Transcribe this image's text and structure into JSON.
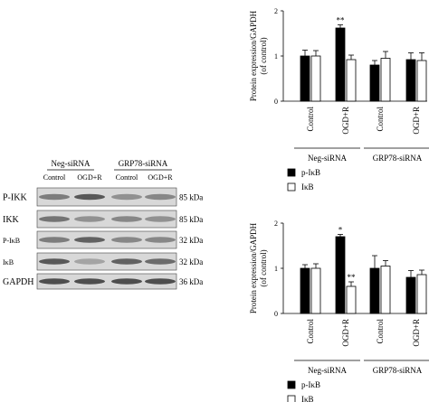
{
  "western_blot": {
    "groups": [
      "Neg-siRNA",
      "GRP78-siRNA"
    ],
    "lanes": [
      "Control",
      "OGD+R",
      "Control",
      "OGD+R"
    ],
    "rows": [
      {
        "label": "P-IKK",
        "kda": "85 kDa"
      },
      {
        "label": "IKK",
        "kda": "85 kDa"
      },
      {
        "label": "P-IκB",
        "kda": "32 kDa"
      },
      {
        "label": "IκB",
        "kda": "32 kDa"
      },
      {
        "label": "GAPDH",
        "kda": "36 kDa"
      }
    ]
  },
  "chart_data": [
    {
      "type": "bar",
      "ylabel": "Protein expression/GAPDH (of control)",
      "ylim": [
        0,
        2
      ],
      "yticks": [
        "0",
        "1",
        "2"
      ],
      "categories": [
        "Control",
        "OGD+R",
        "Control",
        "OGD+R"
      ],
      "groups": [
        {
          "label": "Neg-siRNA",
          "span": [
            0,
            1
          ]
        },
        {
          "label": "GRP78-siRNA",
          "span": [
            2,
            3
          ]
        }
      ],
      "series": [
        {
          "name": "p-IκB",
          "color": "#000000",
          "values": [
            1.0,
            1.62,
            0.8,
            0.92
          ],
          "errors": [
            0.13,
            0.07,
            0.1,
            0.15
          ],
          "marks": [
            "",
            "**",
            "",
            ""
          ]
        },
        {
          "name": "IκB",
          "color": "#ffffff",
          "values": [
            1.0,
            0.92,
            0.95,
            0.9
          ],
          "errors": [
            0.12,
            0.1,
            0.15,
            0.17
          ],
          "marks": [
            "",
            "",
            "",
            ""
          ]
        }
      ],
      "legend": [
        "p-IκB",
        "IκB"
      ]
    },
    {
      "type": "bar",
      "ylabel": "Protein expression/GAPDH (of control)",
      "ylim": [
        0,
        2
      ],
      "yticks": [
        "0",
        "1",
        "2"
      ],
      "categories": [
        "Control",
        "OGD+R",
        "Control",
        "OGD+R"
      ],
      "groups": [
        {
          "label": "Neg-siRNA",
          "span": [
            0,
            1
          ]
        },
        {
          "label": "GRP78-siRNA",
          "span": [
            2,
            3
          ]
        }
      ],
      "series": [
        {
          "name": "p-IκB",
          "color": "#000000",
          "values": [
            1.0,
            1.7,
            1.0,
            0.8
          ],
          "errors": [
            0.08,
            0.05,
            0.28,
            0.15
          ],
          "marks": [
            "",
            "*",
            "",
            ""
          ]
        },
        {
          "name": "IκB",
          "color": "#ffffff",
          "values": [
            1.0,
            0.6,
            1.05,
            0.86
          ],
          "errors": [
            0.1,
            0.1,
            0.12,
            0.1
          ],
          "marks": [
            "",
            "**",
            "",
            ""
          ]
        }
      ],
      "legend": [
        "p-IκB",
        "IκB"
      ]
    }
  ]
}
